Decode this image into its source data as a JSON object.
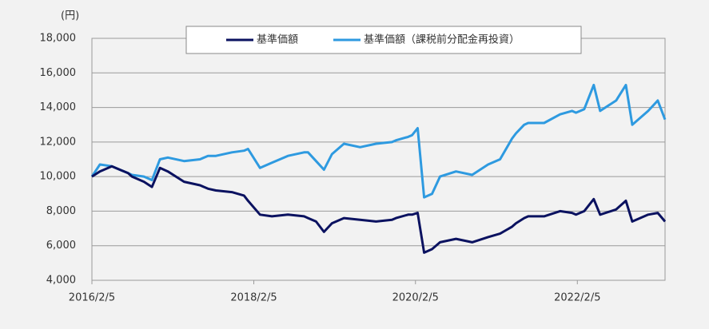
{
  "chart_data": {
    "type": "line",
    "y_unit": "(円)",
    "x": [
      "2016/2/5",
      "2016/3/12",
      "2016/5/5",
      "2016/6/10",
      "2016/7/17",
      "2016/8/4",
      "2016/9/27",
      "2016/11/2",
      "2016/12/8",
      "2017/1/13",
      "2017/3/27",
      "2017/6/7",
      "2017/7/13",
      "2017/8/18",
      "2017/10/29",
      "2017/12/23",
      "2018/1/10",
      "2018/3/5",
      "2018/4/28",
      "2018/7/9",
      "2018/9/20",
      "2018/10/8",
      "2018/11/13",
      "2018/12/19",
      "2019/1/24",
      "2019/3/19",
      "2019/5/31",
      "2019/8/11",
      "2019/10/22",
      "2019/11/9",
      "2020/1/3",
      "2020/1/21",
      "2020/2/15",
      "2020/3/15",
      "2020/4/20",
      "2020/5/26",
      "2020/8/6",
      "2020/10/18",
      "2020/12/29",
      "2021/2/21",
      "2021/4/16",
      "2021/5/4",
      "2021/6/10",
      "2021/6/28",
      "2021/9/8",
      "2021/11/19",
      "2022/1/12",
      "2022/1/30",
      "2022/3/8",
      "2022/4/20",
      "2022/5/19",
      "2022/7/30",
      "2022/9/12",
      "2022/10/11",
      "2022/12/22",
      "2023/2/3",
      "2023/3/8"
    ],
    "series": [
      {
        "name": "基準価額",
        "color": "#0b1260",
        "values": [
          10000,
          10300,
          10600,
          10400,
          10200,
          10000,
          9700,
          9400,
          10500,
          10300,
          9700,
          9500,
          9300,
          9200,
          9100,
          8900,
          8600,
          7800,
          7700,
          7800,
          7700,
          7600,
          7400,
          6800,
          7300,
          7600,
          7500,
          7400,
          7500,
          7600,
          7800,
          7800,
          7900,
          5600,
          5800,
          6200,
          6400,
          6200,
          6500,
          6700,
          7100,
          7300,
          7600,
          7700,
          7700,
          8000,
          7900,
          7800,
          8000,
          8700,
          7800,
          8100,
          8600,
          7400,
          7800,
          7900,
          7400
        ]
      },
      {
        "name": "基準価額（課税前分配金再投資）",
        "color": "#2e9ae0",
        "values": [
          10000,
          10700,
          10600,
          10400,
          10200,
          10100,
          10000,
          9800,
          11000,
          11100,
          10900,
          11000,
          11200,
          11200,
          11400,
          11500,
          11600,
          10500,
          10800,
          11200,
          11400,
          11400,
          10900,
          10400,
          11300,
          11900,
          11700,
          11900,
          12000,
          12100,
          12300,
          12400,
          12800,
          8800,
          9000,
          10000,
          10300,
          10100,
          10700,
          11000,
          12200,
          12500,
          13000,
          13100,
          13100,
          13600,
          13800,
          13700,
          13900,
          15300,
          13800,
          14400,
          15300,
          13000,
          13800,
          14400,
          13300
        ]
      }
    ],
    "xlim": [
      "2016/2/5",
      "2023/3/8"
    ],
    "xticks": [
      "2016/2/5",
      "2018/2/5",
      "2020/2/5",
      "2022/2/5"
    ],
    "ylim": [
      4000,
      18000
    ],
    "yticks": [
      {
        "value": 4000,
        "label": "4,000"
      },
      {
        "value": 6000,
        "label": "6,000"
      },
      {
        "value": 8000,
        "label": "8,000"
      },
      {
        "value": 10000,
        "label": "10,000"
      },
      {
        "value": 12000,
        "label": "12,000"
      },
      {
        "value": 14000,
        "label": "14,000"
      },
      {
        "value": 16000,
        "label": "16,000"
      },
      {
        "value": 18000,
        "label": "18,000"
      }
    ],
    "grid": true,
    "legend": "top"
  }
}
